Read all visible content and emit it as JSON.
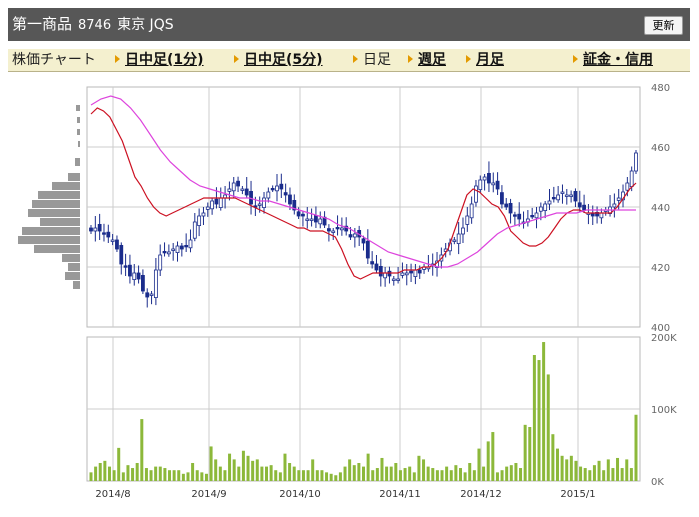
{
  "header": {
    "name": "第一商品",
    "code": "8746",
    "market": "東京 JQS",
    "refresh_label": "更新"
  },
  "nav": {
    "label": "株価チャート",
    "items": [
      {
        "label": "日中足(1分)",
        "link": true
      },
      {
        "label": "日中足(5分)",
        "link": true
      },
      {
        "label": "日足",
        "link": false
      },
      {
        "label": "週足",
        "link": true
      },
      {
        "label": "月足",
        "link": true
      },
      {
        "label": "証金・信用",
        "link": true
      }
    ]
  },
  "colors": {
    "candle": "#1a2c8c",
    "ma_short": "#cc1122",
    "ma_long": "#dd44dd",
    "volume": "#8cb83a",
    "volume_profile": "#999999",
    "grid": "#cccccc"
  },
  "chart_data": [
    {
      "type": "candlestick",
      "title": "",
      "x_labels": [
        "2014/8",
        "2014/9",
        "2014/10",
        "2014/11",
        "2014/12",
        "2015/1"
      ],
      "ylim": [
        400,
        480
      ],
      "yticks": [
        400,
        420,
        440,
        460,
        480
      ],
      "close": [
        432,
        433,
        432,
        431,
        430,
        429,
        426,
        421,
        420,
        417,
        418,
        416,
        412,
        410,
        411,
        419,
        424,
        425,
        425,
        426,
        427,
        426,
        427,
        429,
        435,
        437,
        438,
        440,
        442,
        441,
        443,
        444,
        446,
        448,
        447,
        446,
        444,
        441,
        440,
        441,
        443,
        445,
        446,
        447,
        446,
        444,
        441,
        439,
        437,
        437,
        436,
        436,
        435,
        436,
        434,
        432,
        432,
        433,
        433,
        432,
        430,
        431,
        430,
        428,
        423,
        421,
        419,
        417,
        418,
        417,
        416,
        416,
        418,
        418,
        418,
        419,
        418,
        420,
        420,
        421,
        422,
        424,
        426,
        428,
        429,
        431,
        433,
        437,
        441,
        447,
        449,
        450,
        448,
        448,
        446,
        441,
        440,
        438,
        437,
        436,
        435,
        436,
        437,
        438,
        440,
        441,
        442,
        443,
        444,
        445,
        444,
        444,
        442,
        440,
        439,
        438,
        437,
        437,
        438,
        439,
        440,
        441,
        443,
        445,
        448,
        452,
        458
      ],
      "series": [
        {
          "name": "",
          "style": "ma_short",
          "values": [
            471,
            473,
            472,
            470,
            466,
            462,
            456,
            450,
            447,
            443,
            440,
            438,
            437,
            438,
            439,
            440,
            441,
            442,
            443,
            443,
            443,
            443,
            443,
            443,
            442,
            441,
            440,
            439,
            438,
            437,
            436,
            435,
            434,
            433,
            433,
            432,
            432,
            432,
            431,
            430,
            426,
            421,
            417,
            416,
            417,
            418,
            418,
            418,
            418,
            418,
            419,
            419,
            419,
            420,
            420,
            421,
            423,
            426,
            432,
            438,
            444,
            446,
            445,
            443,
            441,
            440,
            437,
            432,
            430,
            428,
            427,
            427,
            428,
            430,
            433,
            436,
            438,
            439,
            439,
            438,
            438,
            438,
            438,
            438,
            440,
            443,
            446,
            448
          ]
        },
        {
          "name": "",
          "style": "ma_long",
          "values": [
            474,
            476,
            477,
            476,
            473,
            469,
            464,
            459,
            455,
            452,
            449,
            447,
            446,
            445,
            444,
            443,
            443,
            442,
            442,
            441,
            440,
            439,
            438,
            437,
            436,
            434,
            433,
            431,
            429,
            427,
            425,
            424,
            423,
            422,
            421,
            420,
            420,
            421,
            423,
            425,
            428,
            431,
            433,
            434,
            435,
            436,
            437,
            438,
            438,
            438,
            439,
            439,
            439,
            439,
            439,
            439
          ]
        }
      ]
    },
    {
      "type": "bar",
      "title": "",
      "ylim": [
        0,
        200000
      ],
      "yticks_labels": [
        "0K",
        "100K",
        "200K"
      ],
      "values": [
        12000,
        20000,
        25000,
        28000,
        20000,
        15000,
        46000,
        12000,
        22000,
        18000,
        25000,
        86000,
        18000,
        15000,
        20000,
        20000,
        18000,
        15000,
        15000,
        15000,
        10000,
        12000,
        25000,
        15000,
        12000,
        10000,
        48000,
        30000,
        20000,
        15000,
        38000,
        30000,
        20000,
        42000,
        35000,
        28000,
        30000,
        20000,
        20000,
        22000,
        15000,
        12000,
        38000,
        25000,
        20000,
        15000,
        15000,
        15000,
        30000,
        15000,
        15000,
        12000,
        10000,
        8000,
        12000,
        20000,
        30000,
        22000,
        25000,
        20000,
        38000,
        15000,
        18000,
        32000,
        20000,
        20000,
        25000,
        15000,
        18000,
        20000,
        12000,
        35000,
        30000,
        20000,
        18000,
        15000,
        15000,
        20000,
        15000,
        22000,
        18000,
        12000,
        25000,
        15000,
        45000,
        20000,
        55000,
        68000,
        12000,
        15000,
        20000,
        22000,
        25000,
        18000,
        78000,
        75000,
        175000,
        168000,
        193000,
        148000,
        65000,
        45000,
        35000,
        30000,
        35000,
        28000,
        20000,
        18000,
        15000,
        22000,
        28000,
        15000,
        30000,
        18000,
        32000,
        18000,
        30000,
        18000,
        92000
      ]
    }
  ]
}
